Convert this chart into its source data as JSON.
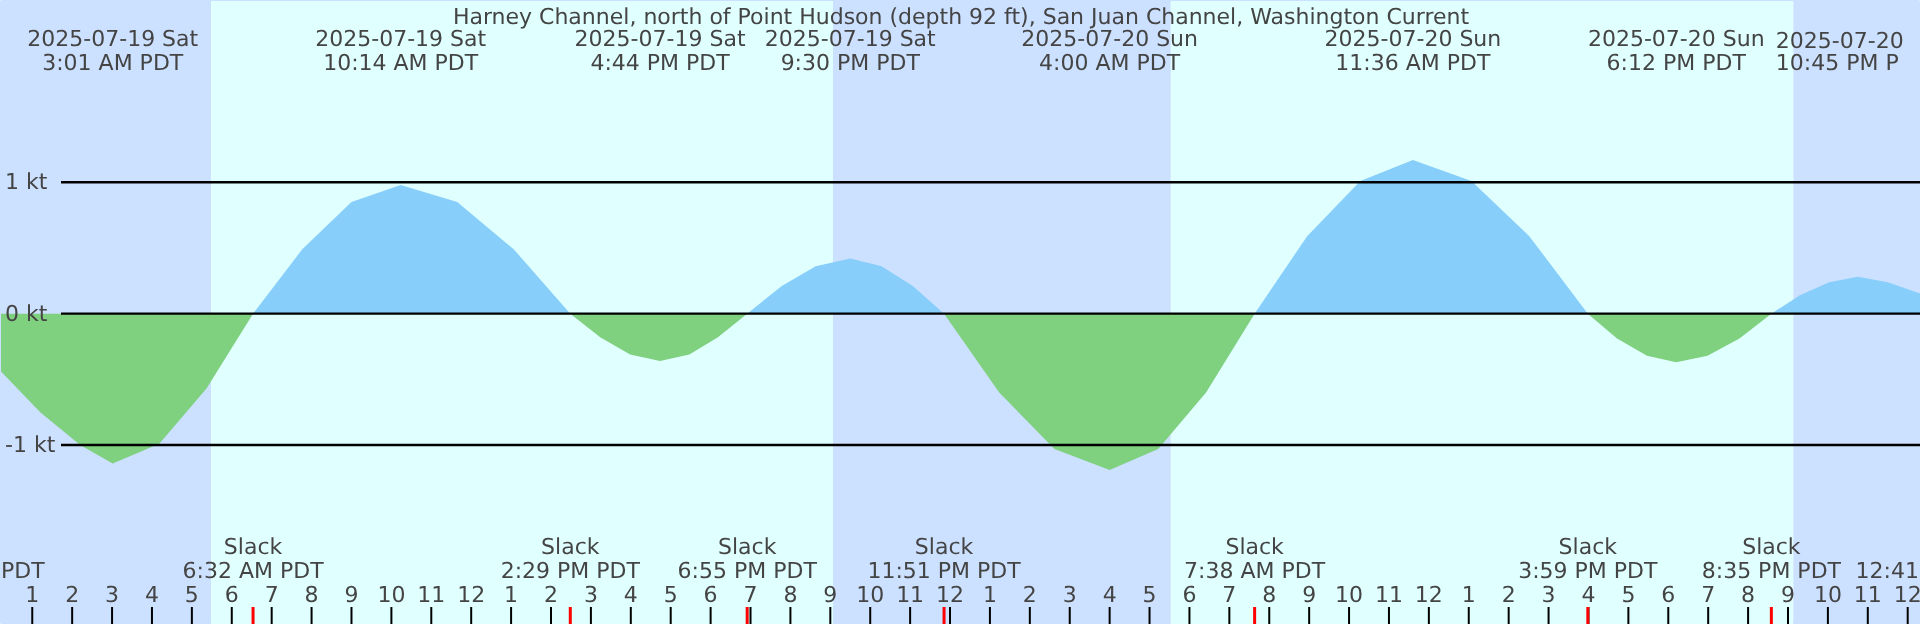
{
  "chart_data": {
    "type": "area",
    "title": "Harney Channel, north of Point Hudson (depth 92 ft), San Juan Channel, Washington Current",
    "xlim": [
      "2025-07-19T00:13",
      "2025-07-21T00:20"
    ],
    "ylim": [
      -2.37,
      2.38
    ],
    "grid": "y",
    "yticks": [
      {
        "value": 1,
        "label": "1 kt"
      },
      {
        "value": 0,
        "label": "0 kt"
      },
      {
        "value": -1,
        "label": "-1 kt"
      }
    ],
    "xticks": [
      {
        "value": "2025-07-19T01:00",
        "label": "1"
      },
      {
        "value": "2025-07-19T02:00",
        "label": "2"
      },
      {
        "value": "2025-07-19T03:00",
        "label": "3"
      },
      {
        "value": "2025-07-19T04:00",
        "label": "4"
      },
      {
        "value": "2025-07-19T05:00",
        "label": "5"
      },
      {
        "value": "2025-07-19T06:00",
        "label": "6"
      },
      {
        "value": "2025-07-19T07:00",
        "label": "7"
      },
      {
        "value": "2025-07-19T08:00",
        "label": "8"
      },
      {
        "value": "2025-07-19T09:00",
        "label": "9"
      },
      {
        "value": "2025-07-19T10:00",
        "label": "10"
      },
      {
        "value": "2025-07-19T11:00",
        "label": "11"
      },
      {
        "value": "2025-07-19T12:00",
        "label": "12"
      },
      {
        "value": "2025-07-19T13:00",
        "label": "1"
      },
      {
        "value": "2025-07-19T14:00",
        "label": "2"
      },
      {
        "value": "2025-07-19T15:00",
        "label": "3"
      },
      {
        "value": "2025-07-19T16:00",
        "label": "4"
      },
      {
        "value": "2025-07-19T17:00",
        "label": "5"
      },
      {
        "value": "2025-07-19T18:00",
        "label": "6"
      },
      {
        "value": "2025-07-19T19:00",
        "label": "7"
      },
      {
        "value": "2025-07-19T20:00",
        "label": "8"
      },
      {
        "value": "2025-07-19T21:00",
        "label": "9"
      },
      {
        "value": "2025-07-19T22:00",
        "label": "10"
      },
      {
        "value": "2025-07-19T23:00",
        "label": "11"
      },
      {
        "value": "2025-07-20T00:00",
        "label": "12"
      },
      {
        "value": "2025-07-20T01:00",
        "label": "1"
      },
      {
        "value": "2025-07-20T02:00",
        "label": "2"
      },
      {
        "value": "2025-07-20T03:00",
        "label": "3"
      },
      {
        "value": "2025-07-20T04:00",
        "label": "4"
      },
      {
        "value": "2025-07-20T05:00",
        "label": "5"
      },
      {
        "value": "2025-07-20T06:00",
        "label": "6"
      },
      {
        "value": "2025-07-20T07:00",
        "label": "7"
      },
      {
        "value": "2025-07-20T08:00",
        "label": "8"
      },
      {
        "value": "2025-07-20T09:00",
        "label": "9"
      },
      {
        "value": "2025-07-20T10:00",
        "label": "10"
      },
      {
        "value": "2025-07-20T11:00",
        "label": "11"
      },
      {
        "value": "2025-07-20T12:00",
        "label": "12"
      },
      {
        "value": "2025-07-20T13:00",
        "label": "1"
      },
      {
        "value": "2025-07-20T14:00",
        "label": "2"
      },
      {
        "value": "2025-07-20T15:00",
        "label": "3"
      },
      {
        "value": "2025-07-20T16:00",
        "label": "4"
      },
      {
        "value": "2025-07-20T17:00",
        "label": "5"
      },
      {
        "value": "2025-07-20T18:00",
        "label": "6"
      },
      {
        "value": "2025-07-20T19:00",
        "label": "7"
      },
      {
        "value": "2025-07-20T20:00",
        "label": "8"
      },
      {
        "value": "2025-07-20T21:00",
        "label": "9"
      },
      {
        "value": "2025-07-20T22:00",
        "label": "10"
      },
      {
        "value": "2025-07-20T23:00",
        "label": "11"
      },
      {
        "value": "2025-07-21T00:00",
        "label": "12"
      }
    ],
    "x": [
      "2025-07-19T00:13",
      "2025-07-19T01:12",
      "2025-07-19T02:12",
      "2025-07-19T03:01",
      "2025-07-19T04:11",
      "2025-07-19T05:22",
      "2025-07-19T06:32",
      "2025-07-19T07:46",
      "2025-07-19T09:00",
      "2025-07-19T10:14",
      "2025-07-19T11:39",
      "2025-07-19T13:04",
      "2025-07-19T14:29",
      "2025-07-19T15:14",
      "2025-07-19T15:59",
      "2025-07-19T16:44",
      "2025-07-19T17:28",
      "2025-07-19T18:11",
      "2025-07-19T18:55",
      "2025-07-19T19:47",
      "2025-07-19T20:38",
      "2025-07-19T21:30",
      "2025-07-19T22:17",
      "2025-07-19T23:04",
      "2025-07-19T23:51",
      "2025-07-20T01:14",
      "2025-07-20T02:37",
      "2025-07-20T04:00",
      "2025-07-20T05:13",
      "2025-07-20T06:25",
      "2025-07-20T07:38",
      "2025-07-20T08:57",
      "2025-07-20T10:17",
      "2025-07-20T11:36",
      "2025-07-20T13:04",
      "2025-07-20T14:31",
      "2025-07-20T15:59",
      "2025-07-20T16:43",
      "2025-07-20T17:28",
      "2025-07-20T18:12",
      "2025-07-20T18:59",
      "2025-07-20T19:47",
      "2025-07-20T20:35",
      "2025-07-20T21:18",
      "2025-07-20T22:02",
      "2025-07-20T22:45",
      "2025-07-20T23:30",
      "2025-07-21T00:20"
    ],
    "series": [
      {
        "color": "#87cefa",
        "values": [
          null,
          null,
          null,
          null,
          null,
          null,
          0,
          0.49,
          0.85,
          0.98,
          0.85,
          0.49,
          0,
          null,
          null,
          null,
          null,
          null,
          0,
          0.21,
          0.36,
          0.42,
          0.36,
          0.21,
          0,
          null,
          null,
          null,
          null,
          null,
          0,
          0.59,
          1.01,
          1.17,
          1.01,
          0.59,
          0,
          null,
          null,
          null,
          null,
          null,
          0,
          0.14,
          0.24,
          0.28,
          0.24,
          0.15
        ]
      },
      {
        "color": "#7fd07f",
        "values": [
          -0.44,
          -0.75,
          -1.0,
          -1.14,
          -0.99,
          -0.57,
          0,
          null,
          null,
          null,
          null,
          null,
          0,
          -0.18,
          -0.31,
          -0.36,
          -0.31,
          -0.18,
          0,
          null,
          null,
          null,
          null,
          null,
          0,
          -0.6,
          -1.03,
          -1.19,
          -1.03,
          -0.6,
          0,
          null,
          null,
          null,
          null,
          null,
          0,
          -0.19,
          -0.32,
          -0.37,
          -0.32,
          -0.19,
          0,
          null,
          null,
          null,
          null,
          null
        ]
      }
    ],
    "bands": [
      {
        "axis": "x",
        "from": "2025-07-19T00:13",
        "to": "2025-07-19T05:29",
        "color": "#cce0ff"
      },
      {
        "axis": "x",
        "from": "2025-07-19T05:29",
        "to": "2025-07-19T21:04",
        "color": "#e0ffff"
      },
      {
        "axis": "x",
        "from": "2025-07-19T21:04",
        "to": "2025-07-20T05:32",
        "color": "#cce0ff"
      },
      {
        "axis": "x",
        "from": "2025-07-20T05:32",
        "to": "2025-07-20T21:08",
        "color": "#e0ffff"
      },
      {
        "axis": "x",
        "from": "2025-07-20T21:08",
        "to": "2025-07-21T00:20",
        "color": "#cce0ff"
      }
    ],
    "annotations": [
      "2025-07-19 Sat\n3:01 AM PDT",
      "2025-07-19 Sat\n10:14 AM PDT",
      "2025-07-19 Sat\n4:44 PM PDT",
      "2025-07-19 Sat\n9:30 PM PDT",
      "2025-07-20 Sun\n4:00 AM PDT",
      "2025-07-20 Sun\n11:36 AM PDT",
      "2025-07-20 Sun\n6:12 PM PDT",
      "2025-07-20\n10:45 PM P",
      "Slack\n6:32 AM PDT",
      "Slack\n2:29 PM PDT",
      "Slack\n6:55 PM PDT",
      "Slack\n11:51 PM PDT",
      "Slack\n7:38 AM PDT",
      "Slack\n3:59 PM PDT",
      "Slack\n8:35 PM PDT",
      "PDT",
      "12:41"
    ]
  }
}
